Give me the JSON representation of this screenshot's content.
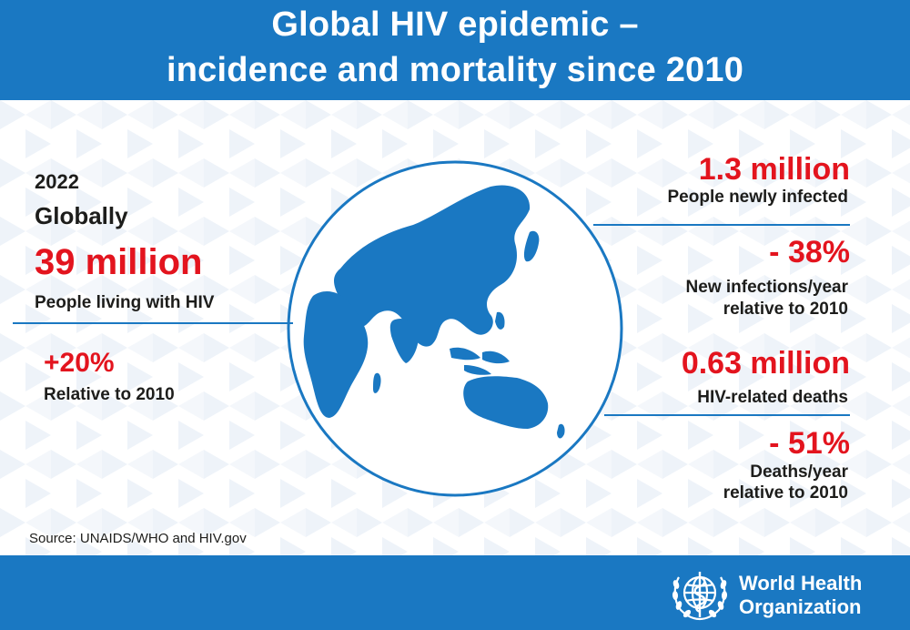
{
  "header": {
    "title_line1": "Global HIV epidemic –",
    "title_line2": "incidence and mortality since 2010"
  },
  "left": {
    "year": "2022",
    "scope": "Globally",
    "people_living_value": "39 million",
    "people_living_label": "People living with HIV",
    "change_value": "+20%",
    "change_label": "Relative to 2010"
  },
  "right": {
    "new_infections_value": "1.3 million",
    "new_infections_label": "People newly infected",
    "new_infections_change": "- 38%",
    "new_infections_change_label_1": "New infections/year",
    "new_infections_change_label_2": "relative to 2010",
    "deaths_value": "0.63 million",
    "deaths_label": "HIV-related deaths",
    "deaths_change": "- 51%",
    "deaths_change_label_1": "Deaths/year",
    "deaths_change_label_2": "relative to 2010"
  },
  "source": "Source: UNAIDS/WHO and HIV.gov",
  "footer": {
    "org_line1": "World Health",
    "org_line2": "Organization"
  },
  "colors": {
    "brand_blue": "#1a78c2",
    "highlight_red": "#e3141e",
    "text_dark": "#1d1d1b"
  }
}
